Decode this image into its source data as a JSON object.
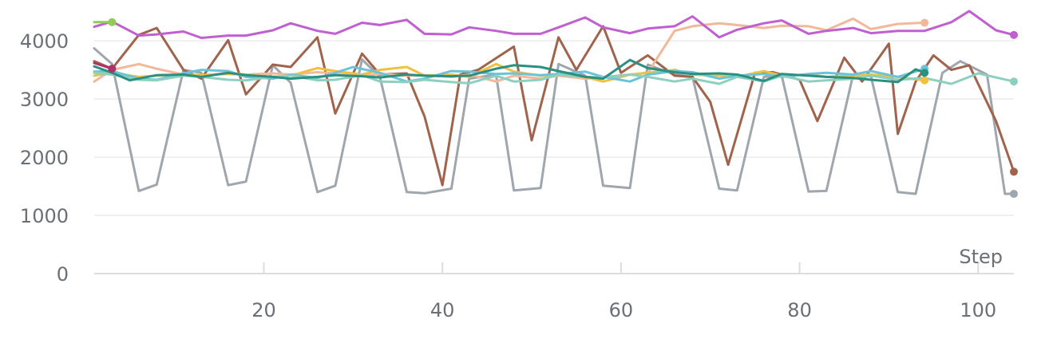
{
  "chart_data": {
    "type": "line",
    "xlabel": "Step",
    "ylabel": "",
    "xlim": [
      1,
      104
    ],
    "ylim": [
      0,
      4550
    ],
    "x_ticks": [
      20,
      40,
      60,
      80,
      100
    ],
    "y_ticks": [
      0,
      1000,
      2000,
      3000,
      4000
    ],
    "grid": true,
    "legend": "none",
    "series": [
      {
        "color": "#9fa6ad",
        "x": [
          1,
          3,
          6,
          8,
          11,
          13,
          16,
          18,
          21,
          23,
          26,
          28,
          31,
          33,
          36,
          38,
          41,
          43,
          46,
          48,
          51,
          53,
          56,
          58,
          61,
          63,
          66,
          68,
          71,
          73,
          76,
          78,
          81,
          83,
          86,
          88,
          91,
          93,
          96,
          98,
          101,
          103,
          104
        ],
        "y": [
          3870,
          3600,
          1420,
          1530,
          3500,
          3450,
          1520,
          1580,
          3580,
          3280,
          1400,
          1510,
          3680,
          3380,
          1400,
          1380,
          1460,
          3350,
          3420,
          1430,
          1470,
          3600,
          3400,
          1510,
          1470,
          3590,
          3420,
          3380,
          1460,
          1430,
          3380,
          3400,
          1410,
          1420,
          3420,
          3390,
          1400,
          1370,
          3450,
          3650,
          3420,
          1370,
          1370
        ]
      },
      {
        "color": "#a0634c",
        "x": [
          1,
          3,
          6,
          8,
          11,
          13,
          16,
          18,
          21,
          23,
          26,
          28,
          31,
          33,
          36,
          38,
          40,
          42,
          44,
          46,
          48,
          50,
          53,
          55,
          58,
          60,
          63,
          66,
          68,
          70,
          72,
          75,
          77,
          80,
          82,
          85,
          87,
          90,
          91,
          93,
          95,
          97,
          99,
          102,
          104
        ],
        "y": [
          3650,
          3520,
          4100,
          4220,
          3500,
          3350,
          4010,
          3080,
          3590,
          3550,
          4060,
          2750,
          3780,
          3420,
          3440,
          2700,
          1520,
          3420,
          3500,
          3700,
          3900,
          2290,
          4060,
          3500,
          4250,
          3450,
          3750,
          3400,
          3380,
          2950,
          1870,
          3450,
          3460,
          3330,
          2620,
          3710,
          3300,
          3950,
          2400,
          3300,
          3750,
          3500,
          3580,
          2620,
          1750
        ]
      },
      {
        "color": "#f1b89a",
        "x": [
          1,
          3,
          6,
          8,
          11,
          13,
          16,
          18,
          21,
          23,
          26,
          28,
          31,
          33,
          36,
          38,
          41,
          43,
          46,
          48,
          51,
          53,
          56,
          58,
          61,
          63,
          66,
          68,
          71,
          73,
          76,
          78,
          81,
          83,
          86,
          88,
          91,
          94
        ],
        "y": [
          3300,
          3500,
          3600,
          3520,
          3420,
          3400,
          3450,
          3420,
          3440,
          3420,
          3460,
          3440,
          3400,
          3430,
          3400,
          3410,
          3380,
          3420,
          3300,
          3400,
          3350,
          3400,
          3350,
          3380,
          3420,
          3450,
          4170,
          4250,
          4300,
          4270,
          4220,
          4260,
          4250,
          4180,
          4380,
          4200,
          4290,
          4310
        ]
      },
      {
        "color": "#f0c040",
        "x": [
          1,
          3,
          6,
          8,
          11,
          13,
          16,
          18,
          21,
          23,
          26,
          28,
          31,
          33,
          36,
          38,
          41,
          43,
          46,
          48,
          51,
          53,
          56,
          58,
          61,
          63,
          66,
          68,
          71,
          73,
          76,
          78,
          81,
          83,
          86,
          88,
          91,
          94
        ],
        "y": [
          3400,
          3450,
          3380,
          3400,
          3420,
          3410,
          3430,
          3420,
          3380,
          3400,
          3530,
          3480,
          3420,
          3500,
          3550,
          3400,
          3420,
          3380,
          3600,
          3470,
          3400,
          3420,
          3380,
          3300,
          3420,
          3450,
          3500,
          3420,
          3400,
          3380,
          3480,
          3400,
          3420,
          3380,
          3400,
          3420,
          3380,
          3320
        ]
      },
      {
        "color": "#6cc3d9",
        "x": [
          1,
          3,
          6,
          8,
          11,
          13,
          16,
          18,
          21,
          23,
          26,
          28,
          30,
          33,
          36,
          38,
          41,
          43,
          46,
          48,
          51,
          53,
          56,
          58,
          61,
          63,
          66,
          68,
          71,
          73,
          76,
          78,
          81,
          83,
          86,
          88,
          91,
          94
        ],
        "y": [
          3470,
          3480,
          3350,
          3330,
          3440,
          3500,
          3480,
          3380,
          3350,
          3420,
          3360,
          3450,
          3550,
          3450,
          3300,
          3350,
          3480,
          3470,
          3430,
          3440,
          3410,
          3430,
          3470,
          3380,
          3300,
          3420,
          3480,
          3460,
          3350,
          3400,
          3430,
          3380,
          3430,
          3450,
          3420,
          3480,
          3380,
          3520
        ]
      },
      {
        "color": "#8ed0c0",
        "x": [
          1,
          3,
          6,
          8,
          11,
          13,
          16,
          18,
          21,
          23,
          26,
          28,
          31,
          33,
          36,
          38,
          41,
          43,
          46,
          48,
          51,
          53,
          56,
          58,
          61,
          63,
          66,
          68,
          71,
          73,
          76,
          78,
          81,
          83,
          86,
          88,
          91,
          94,
          97,
          100,
          104
        ],
        "y": [
          3450,
          3420,
          3330,
          3320,
          3400,
          3380,
          3330,
          3320,
          3380,
          3400,
          3320,
          3330,
          3410,
          3300,
          3290,
          3330,
          3290,
          3270,
          3400,
          3300,
          3330,
          3420,
          3380,
          3370,
          3420,
          3380,
          3300,
          3350,
          3260,
          3380,
          3300,
          3400,
          3300,
          3320,
          3350,
          3400,
          3330,
          3360,
          3260,
          3440,
          3300
        ]
      },
      {
        "color": "#2a9080",
        "x": [
          1,
          3,
          5,
          8,
          11,
          13,
          16,
          18,
          21,
          23,
          26,
          28,
          31,
          33,
          36,
          38,
          41,
          43,
          46,
          48,
          51,
          53,
          56,
          58,
          61,
          63,
          66,
          68,
          71,
          73,
          76,
          78,
          81,
          83,
          86,
          88,
          91,
          93,
          94
        ],
        "y": [
          3560,
          3450,
          3320,
          3410,
          3420,
          3380,
          3450,
          3410,
          3380,
          3350,
          3380,
          3410,
          3390,
          3370,
          3420,
          3400,
          3390,
          3400,
          3520,
          3580,
          3550,
          3480,
          3380,
          3350,
          3670,
          3530,
          3460,
          3430,
          3440,
          3420,
          3310,
          3430,
          3400,
          3380,
          3360,
          3330,
          3290,
          3510,
          3450
        ]
      },
      {
        "color": "#c060d0",
        "x": [
          1,
          3,
          6,
          8,
          11,
          13,
          16,
          18,
          21,
          23,
          26,
          28,
          31,
          33,
          36,
          38,
          41,
          43,
          46,
          48,
          51,
          53,
          56,
          58,
          61,
          63,
          66,
          68,
          71,
          73,
          76,
          78,
          81,
          83,
          86,
          88,
          91,
          94,
          97,
          99,
          102,
          104
        ],
        "y": [
          4240,
          4330,
          4090,
          4110,
          4160,
          4050,
          4090,
          4090,
          4180,
          4300,
          4170,
          4120,
          4310,
          4270,
          4360,
          4120,
          4110,
          4230,
          4170,
          4120,
          4120,
          4230,
          4400,
          4230,
          4130,
          4210,
          4250,
          4420,
          4060,
          4190,
          4300,
          4350,
          4120,
          4170,
          4220,
          4130,
          4170,
          4170,
          4320,
          4510,
          4180,
          4100
        ]
      },
      {
        "color": "#8fcc58",
        "x": [
          1,
          3
        ],
        "y": [
          4320,
          4320
        ]
      },
      {
        "color": "#b0306a",
        "x": [
          1,
          3
        ],
        "y": [
          3620,
          3520
        ]
      }
    ]
  }
}
